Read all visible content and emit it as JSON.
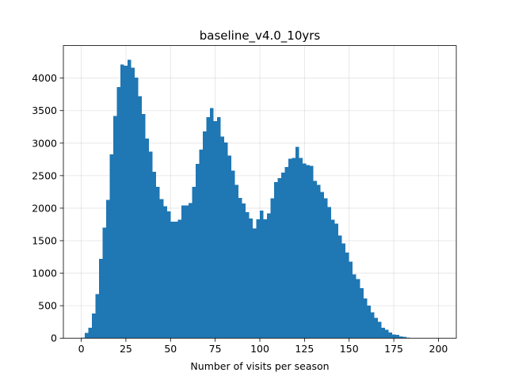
{
  "chart_data": {
    "type": "bar",
    "title": "baseline_v4.0_10yrs",
    "xlabel": "Number of visits per season",
    "ylabel": "",
    "xlim": [
      -10,
      210
    ],
    "ylim": [
      0,
      4500
    ],
    "xticks": [
      0,
      25,
      50,
      75,
      100,
      125,
      150,
      175,
      200
    ],
    "yticks": [
      0,
      500,
      1000,
      1500,
      2000,
      2500,
      3000,
      3500,
      4000
    ],
    "grid": true,
    "bar_color": "#1f77b4",
    "bin_start": 0,
    "bin_width": 2,
    "values": [
      10,
      80,
      160,
      380,
      680,
      1220,
      1700,
      2130,
      2830,
      3420,
      3860,
      4210,
      4190,
      4280,
      4160,
      4010,
      3720,
      3450,
      3070,
      2870,
      2560,
      2330,
      2140,
      2030,
      1950,
      1790,
      1790,
      1820,
      2040,
      2040,
      2080,
      2330,
      2680,
      2900,
      3180,
      3400,
      3540,
      3340,
      3400,
      3100,
      3010,
      2810,
      2580,
      2360,
      2160,
      2070,
      1940,
      1840,
      1690,
      1830,
      1960,
      1830,
      1920,
      2150,
      2400,
      2460,
      2550,
      2630,
      2760,
      2770,
      2940,
      2770,
      2690,
      2660,
      2650,
      2420,
      2360,
      2250,
      2150,
      2020,
      1820,
      1760,
      1580,
      1460,
      1320,
      1180,
      980,
      910,
      770,
      610,
      500,
      400,
      310,
      250,
      160,
      130,
      90,
      60,
      50,
      25,
      20,
      10,
      5,
      3,
      2,
      1,
      0,
      0,
      0,
      0
    ]
  }
}
